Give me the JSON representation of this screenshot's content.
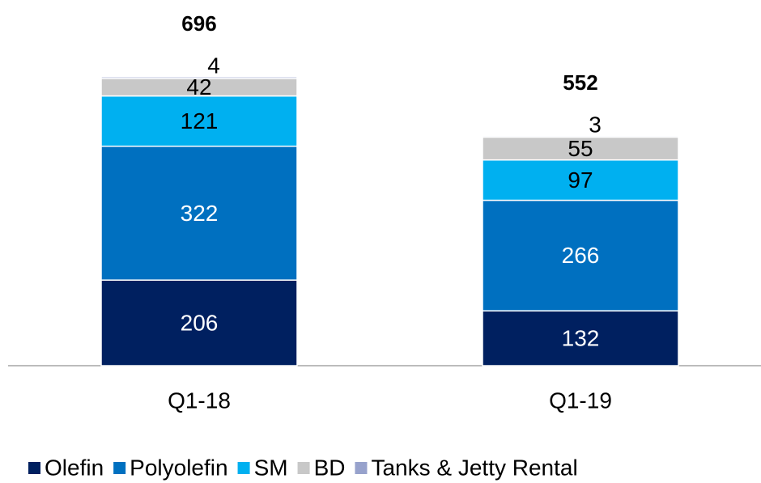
{
  "chart_data": {
    "type": "stacked_bar",
    "categories": [
      "Q1-18",
      "Q1-19"
    ],
    "series": [
      {
        "name": "Olefin",
        "color": "#002060",
        "values": [
          206,
          132
        ]
      },
      {
        "name": "Polyolefin",
        "color": "#0070c0",
        "values": [
          322,
          266
        ]
      },
      {
        "name": "SM",
        "color": "#00b0f0",
        "values": [
          121,
          97
        ]
      },
      {
        "name": "BD",
        "color": "#c8c8c8",
        "values": [
          42,
          55
        ]
      },
      {
        "name": "Tanks & Jetty Rental",
        "color": "#97a2cc",
        "values": [
          4,
          3
        ]
      }
    ],
    "totals": [
      696,
      552
    ],
    "ylim": [
      0,
      800
    ],
    "legend": "bottom"
  }
}
